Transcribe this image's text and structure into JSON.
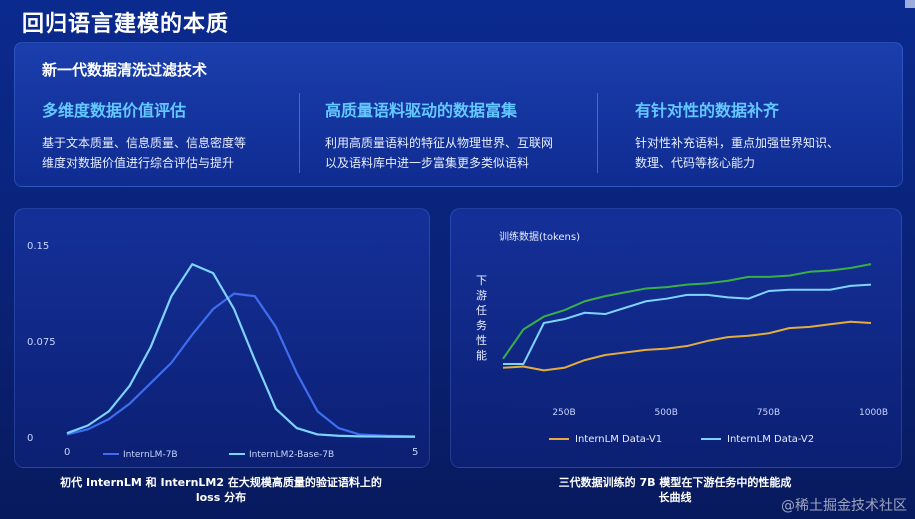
{
  "page": {
    "title": "回归语言建模的本质"
  },
  "panel": {
    "title": "新一代数据清洗过滤技术",
    "features": [
      {
        "title": "多维度数据价值评估",
        "desc": "基于文本质量、信息质量、信息密度等\n维度对数据价值进行综合评估与提升"
      },
      {
        "title": "高质量语料驱动的数据富集",
        "desc": "利用高质量语料的特征从物理世界、互联网\n以及语料库中进一步富集更多类似语料"
      },
      {
        "title": "有针对性的数据补齐",
        "desc": "针对性补充语料，重点加强世界知识、\n数理、代码等核心能力"
      }
    ]
  },
  "captions": {
    "left": "初代 InternLM 和 InternLM2 在大规模高质量的验证语料上的",
    "left2": "loss 分布",
    "right": "三代数据训练的 7B 模型在下游任务中的性能成",
    "right2": "长曲线"
  },
  "watermark": "@稀土掘金技术社区",
  "chart_data": [
    {
      "type": "line",
      "title": "",
      "xlabel": "",
      "ylabel": "",
      "xlim": [
        0,
        5
      ],
      "ylim": [
        0,
        0.15
      ],
      "x_ticks": [
        "0",
        "5"
      ],
      "y_ticks": [
        "0",
        "0.075",
        "0.15"
      ],
      "legend": "bottom",
      "grid": false,
      "x": [
        0,
        0.3,
        0.6,
        0.9,
        1.2,
        1.5,
        1.8,
        2.1,
        2.4,
        2.7,
        3.0,
        3.3,
        3.6,
        3.9,
        4.2,
        4.6,
        5.0
      ],
      "series": [
        {
          "name": "InternLM-7B",
          "color": "#3f6df0",
          "values": [
            0.002,
            0.006,
            0.014,
            0.026,
            0.042,
            0.058,
            0.08,
            0.1,
            0.112,
            0.11,
            0.086,
            0.05,
            0.02,
            0.007,
            0.002,
            0.001,
            0.0005
          ]
        },
        {
          "name": "InternLM2-Base-7B",
          "color": "#7fd3ff",
          "values": [
            0.003,
            0.009,
            0.02,
            0.04,
            0.07,
            0.11,
            0.135,
            0.128,
            0.1,
            0.06,
            0.022,
            0.007,
            0.002,
            0.001,
            0.0005,
            0.0003,
            0.0002
          ]
        }
      ]
    },
    {
      "type": "line",
      "title": "",
      "xlabel": "训练数据(tokens)",
      "ylabel": "下游任务性能",
      "xlim": [
        100,
        1000
      ],
      "x_ticks": [
        "250B",
        "500B",
        "750B",
        "1000B"
      ],
      "legend": "bottom",
      "grid": false,
      "x": [
        100,
        150,
        200,
        250,
        300,
        350,
        400,
        450,
        500,
        550,
        600,
        650,
        700,
        750,
        800,
        850,
        900,
        950,
        1000
      ],
      "series": [
        {
          "name": "InternLM Data-V1",
          "color": "#e2ac3f",
          "values": [
            15,
            16,
            13,
            15,
            21,
            25,
            27,
            29,
            30,
            32,
            36,
            39,
            40,
            42,
            46,
            47,
            49,
            51,
            50
          ]
        },
        {
          "name": "InternLM Data-V2",
          "color": "#7fd3ff",
          "values": [
            18,
            18,
            50,
            53,
            58,
            57,
            62,
            67,
            69,
            72,
            72,
            70,
            69,
            75,
            76,
            76,
            76,
            79,
            80
          ]
        },
        {
          "name": "",
          "color": "#3aaf48",
          "values": [
            22,
            45,
            55,
            60,
            67,
            71,
            74,
            77,
            78,
            80,
            81,
            83,
            86,
            86,
            87,
            90,
            91,
            93,
            96
          ]
        }
      ],
      "ylim": [
        0,
        100
      ]
    }
  ]
}
